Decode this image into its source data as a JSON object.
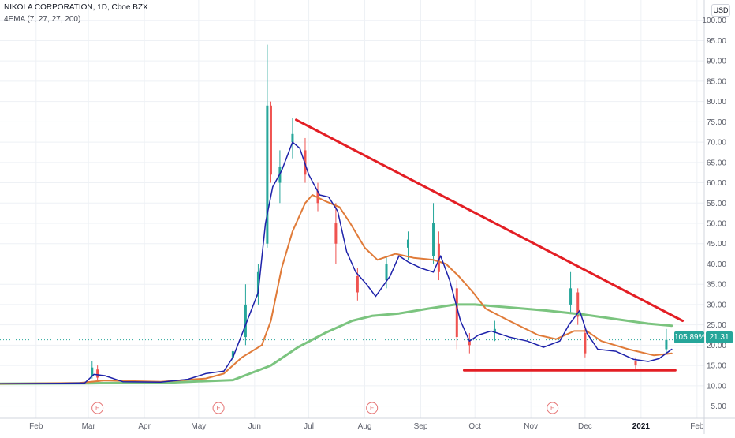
{
  "header": {
    "title": "NIKOLA CORPORATION, 1D, Cboe BZX",
    "indicator": "4EMA (7, 27, 27, 200)"
  },
  "currency_button": "USD",
  "last_price": {
    "percent": "105.89%",
    "price": "21.31"
  },
  "colors": {
    "up": "#26a69a",
    "down": "#ef5350",
    "ema7": "#1e22aa",
    "ema27": "#e07b39",
    "ema200": "#7bc47f",
    "trendline": "#e31e24",
    "grid": "#eef1f5",
    "axis_text": "#5d606b"
  },
  "chart_data": {
    "type": "line",
    "title": "NIKOLA CORPORATION, 1D, Cboe BZX",
    "x_ticks": [
      "Feb",
      "Mar",
      "Apr",
      "May",
      "Jun",
      "Jul",
      "Aug",
      "Sep",
      "Oct",
      "Nov",
      "Dec",
      "2021",
      "Feb"
    ],
    "x_tick_dates": [
      "2020-02-01",
      "2020-03-01",
      "2020-04-01",
      "2020-05-01",
      "2020-06-01",
      "2020-07-01",
      "2020-08-01",
      "2020-09-01",
      "2020-10-01",
      "2020-11-01",
      "2020-12-01",
      "2021-01-01",
      "2021-02-01"
    ],
    "y_ticks": [
      5,
      10,
      15,
      20,
      25,
      30,
      35,
      40,
      45,
      50,
      55,
      60,
      65,
      70,
      75,
      80,
      85,
      90,
      95,
      100
    ],
    "y_tick_labels": [
      "5.00",
      "10.00",
      "15.00",
      "20.00",
      "25.00",
      "30.00",
      "35.00",
      "40.00",
      "45.00",
      "50.00",
      "55.00",
      "60.00",
      "65.00",
      "70.00",
      "75.00",
      "80.00",
      "85.00",
      "90.00",
      "95.00",
      "100.00"
    ],
    "ylim": [
      2,
      105
    ],
    "xlim": [
      "2020-01-12",
      "2021-02-05"
    ],
    "earnings_markers": {
      "label": "E",
      "dates": [
        "2020-03-06",
        "2020-05-12",
        "2020-08-05",
        "2020-11-13"
      ]
    },
    "series": [
      {
        "values": [
          [
            "2020-01-10",
            10.5
          ],
          [
            "2020-02-15",
            10.6
          ],
          [
            "2020-02-28",
            10.7
          ],
          [
            "2020-03-04",
            12.8
          ],
          [
            "2020-03-10",
            12.5
          ],
          [
            "2020-03-20",
            11.0
          ],
          [
            "2020-04-10",
            10.9
          ],
          [
            "2020-04-25",
            11.6
          ],
          [
            "2020-05-05",
            13.0
          ],
          [
            "2020-05-15",
            13.6
          ],
          [
            "2020-05-20",
            17.0
          ],
          [
            "2020-05-27",
            25.0
          ],
          [
            "2020-06-03",
            33.0
          ],
          [
            "2020-06-07",
            50.0
          ],
          [
            "2020-06-11",
            59.0
          ],
          [
            "2020-06-16",
            63.0
          ],
          [
            "2020-06-22",
            70.0
          ],
          [
            "2020-06-26",
            68.5
          ],
          [
            "2020-07-01",
            62.0
          ],
          [
            "2020-07-07",
            57.0
          ],
          [
            "2020-07-12",
            56.5
          ],
          [
            "2020-07-17",
            53.0
          ],
          [
            "2020-07-22",
            43.0
          ],
          [
            "2020-07-27",
            38.0
          ],
          [
            "2020-08-02",
            35.0
          ],
          [
            "2020-08-07",
            32.0
          ],
          [
            "2020-08-15",
            37.0
          ],
          [
            "2020-08-20",
            42.0
          ],
          [
            "2020-08-25",
            40.5
          ],
          [
            "2020-09-01",
            39.0
          ],
          [
            "2020-09-08",
            38.0
          ],
          [
            "2020-09-12",
            42.0
          ],
          [
            "2020-09-17",
            36.0
          ],
          [
            "2020-09-23",
            26.0
          ],
          [
            "2020-09-28",
            21.0
          ],
          [
            "2020-10-03",
            22.5
          ],
          [
            "2020-10-10",
            23.5
          ],
          [
            "2020-10-20",
            22.0
          ],
          [
            "2020-10-30",
            21.0
          ],
          [
            "2020-11-08",
            19.5
          ],
          [
            "2020-11-17",
            21.0
          ],
          [
            "2020-11-22",
            25.0
          ],
          [
            "2020-11-28",
            28.5
          ],
          [
            "2020-12-02",
            23.0
          ],
          [
            "2020-12-08",
            19.0
          ],
          [
            "2020-12-18",
            18.5
          ],
          [
            "2020-12-28",
            16.5
          ],
          [
            "2021-01-05",
            16.0
          ],
          [
            "2021-01-11",
            16.7
          ],
          [
            "2021-01-18",
            19.0
          ]
        ]
      },
      {
        "values": [
          [
            "2020-01-10",
            10.5
          ],
          [
            "2020-02-25",
            10.7
          ],
          [
            "2020-03-10",
            11.3
          ],
          [
            "2020-04-10",
            11.0
          ],
          [
            "2020-05-05",
            11.8
          ],
          [
            "2020-05-15",
            13.0
          ],
          [
            "2020-05-25",
            17.0
          ],
          [
            "2020-06-05",
            20.0
          ],
          [
            "2020-06-10",
            26.0
          ],
          [
            "2020-06-16",
            39.0
          ],
          [
            "2020-06-22",
            48.0
          ],
          [
            "2020-06-29",
            55.0
          ],
          [
            "2020-07-03",
            57.0
          ],
          [
            "2020-07-10",
            55.5
          ],
          [
            "2020-07-18",
            54.0
          ],
          [
            "2020-07-24",
            50.0
          ],
          [
            "2020-08-01",
            44.0
          ],
          [
            "2020-08-08",
            41.0
          ],
          [
            "2020-08-18",
            42.5
          ],
          [
            "2020-08-28",
            41.5
          ],
          [
            "2020-09-08",
            41.0
          ],
          [
            "2020-09-15",
            40.0
          ],
          [
            "2020-09-22",
            37.0
          ],
          [
            "2020-09-30",
            33.0
          ],
          [
            "2020-10-07",
            29.0
          ],
          [
            "2020-10-20",
            26.0
          ],
          [
            "2020-11-05",
            22.5
          ],
          [
            "2020-11-15",
            21.5
          ],
          [
            "2020-11-25",
            23.5
          ],
          [
            "2020-12-02",
            23.5
          ],
          [
            "2020-12-10",
            21.0
          ],
          [
            "2020-12-25",
            19.0
          ],
          [
            "2021-01-08",
            17.5
          ],
          [
            "2021-01-18",
            18.0
          ]
        ]
      },
      {
        "values": [
          [
            "2020-01-10",
            10.5
          ],
          [
            "2020-03-01",
            10.6
          ],
          [
            "2020-04-15",
            10.8
          ],
          [
            "2020-05-20",
            11.4
          ],
          [
            "2020-06-10",
            15.0
          ],
          [
            "2020-06-25",
            19.5
          ],
          [
            "2020-07-10",
            23.0
          ],
          [
            "2020-07-25",
            26.0
          ],
          [
            "2020-08-05",
            27.2
          ],
          [
            "2020-08-20",
            27.8
          ],
          [
            "2020-09-05",
            29.0
          ],
          [
            "2020-09-20",
            30.0
          ],
          [
            "2020-10-01",
            30.0
          ],
          [
            "2020-10-20",
            29.3
          ],
          [
            "2020-11-10",
            28.5
          ],
          [
            "2020-12-01",
            27.5
          ],
          [
            "2020-12-20",
            26.3
          ],
          [
            "2021-01-05",
            25.3
          ],
          [
            "2021-01-18",
            24.8
          ]
        ]
      }
    ],
    "drawings": [
      {
        "from": [
          "2020-06-24",
          75.5
        ],
        "to": [
          "2021-01-24",
          26.0
        ]
      },
      {
        "from": [
          "2020-09-25",
          13.8
        ],
        "to": [
          "2021-01-20",
          13.8
        ]
      }
    ],
    "candles": [
      [
        "2020-03-03",
        12.5,
        16.0,
        11.8,
        14.5
      ],
      [
        "2020-03-06",
        14.0,
        15.0,
        11.5,
        12.0
      ],
      [
        "2020-05-20",
        17.0,
        19.0,
        15.0,
        18.5
      ],
      [
        "2020-05-27",
        22.0,
        35.0,
        20.0,
        30.0
      ],
      [
        "2020-06-03",
        32.0,
        40.0,
        30.0,
        38.0
      ],
      [
        "2020-06-08",
        45.0,
        94.0,
        44.0,
        79.0
      ],
      [
        "2020-06-10",
        79.0,
        80.0,
        60.0,
        62.0
      ],
      [
        "2020-06-15",
        60.0,
        68.0,
        55.0,
        64.0
      ],
      [
        "2020-06-22",
        70.0,
        76.0,
        66.0,
        72.0
      ],
      [
        "2020-06-29",
        68.0,
        71.0,
        60.0,
        62.0
      ],
      [
        "2020-07-06",
        58.0,
        60.0,
        53.0,
        55.0
      ],
      [
        "2020-07-16",
        50.0,
        55.0,
        40.0,
        45.0
      ],
      [
        "2020-07-28",
        37.0,
        39.0,
        31.0,
        33.0
      ],
      [
        "2020-08-13",
        36.0,
        42.0,
        34.0,
        40.0
      ],
      [
        "2020-08-25",
        44.0,
        48.0,
        41.0,
        46.0
      ],
      [
        "2020-09-08",
        42.0,
        55.0,
        40.0,
        50.0
      ],
      [
        "2020-09-11",
        45.0,
        48.0,
        36.0,
        38.0
      ],
      [
        "2020-09-21",
        34.0,
        36.0,
        19.0,
        22.0
      ],
      [
        "2020-09-28",
        21.0,
        23.0,
        18.0,
        20.0
      ],
      [
        "2020-10-12",
        23.0,
        26.0,
        21.0,
        24.0
      ],
      [
        "2020-11-23",
        30.0,
        38.0,
        28.0,
        34.0
      ],
      [
        "2020-11-27",
        33.0,
        34.0,
        25.0,
        27.0
      ],
      [
        "2020-12-01",
        23.0,
        24.0,
        17.0,
        18.0
      ],
      [
        "2020-12-29",
        16.0,
        17.0,
        14.0,
        15.0
      ],
      [
        "2021-01-15",
        19.0,
        24.0,
        18.0,
        21.3
      ]
    ]
  }
}
